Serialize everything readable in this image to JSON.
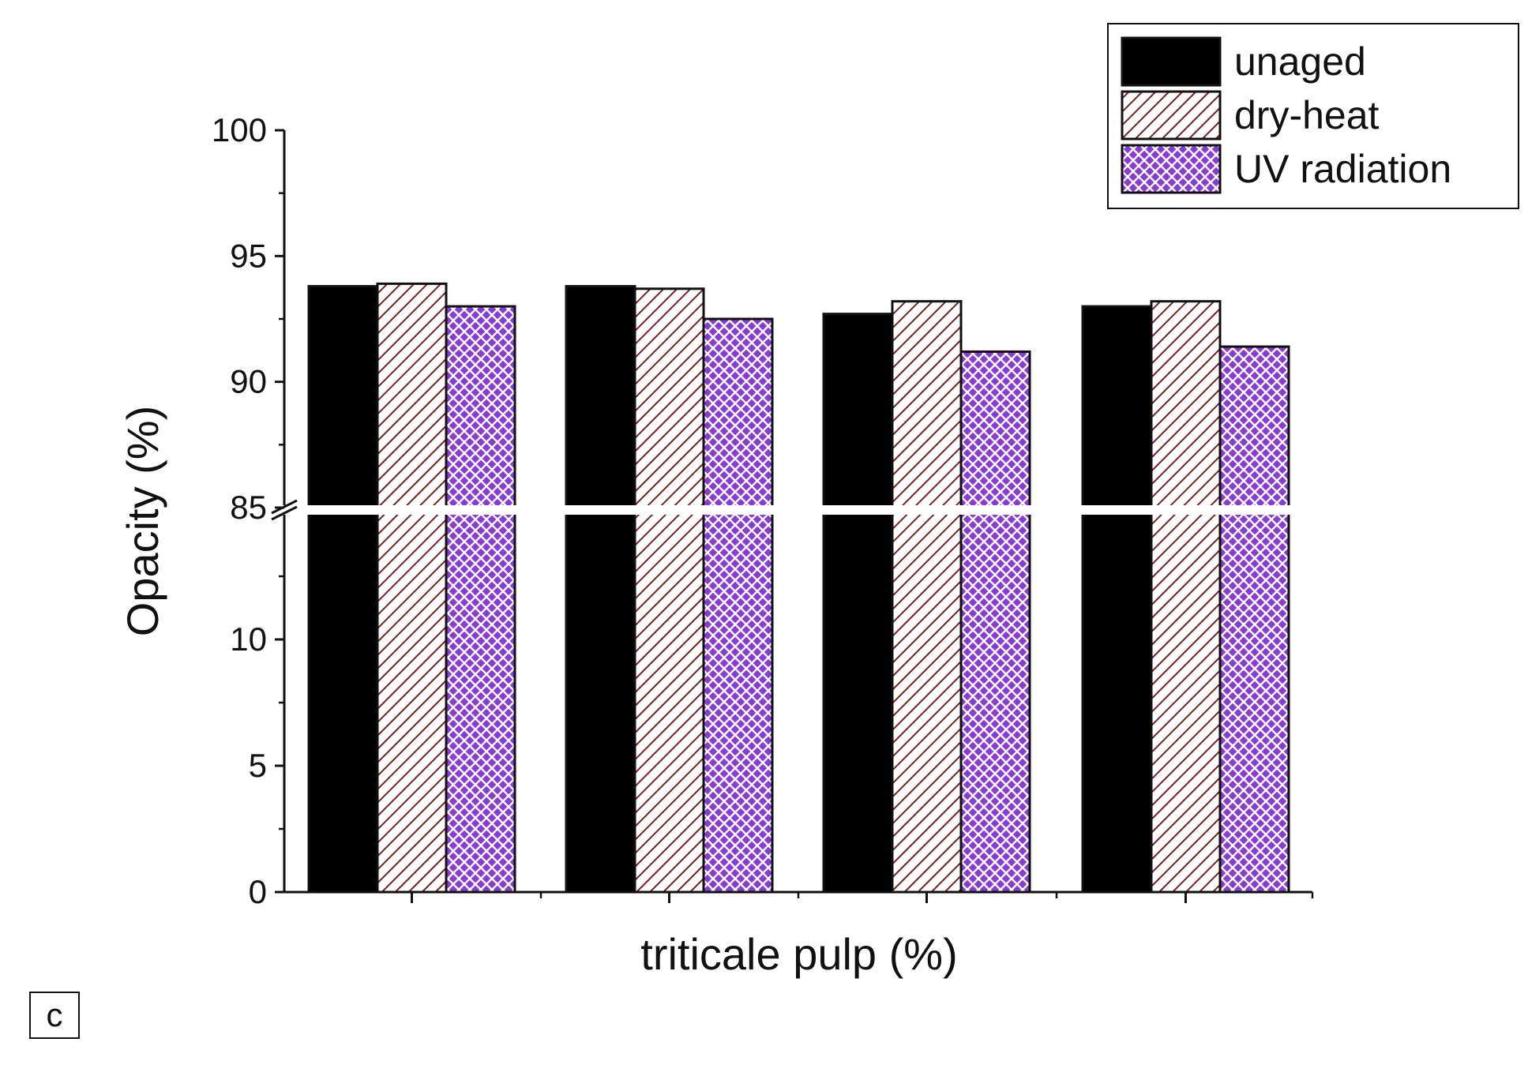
{
  "chart_data": {
    "type": "bar",
    "title": "",
    "xlabel": "triticale pulp (%)",
    "ylabel": "Opacity (%)",
    "categories": [
      "",
      "",
      "",
      ""
    ],
    "series": [
      {
        "name": "unaged",
        "values": [
          93.8,
          93.8,
          92.7,
          93.0
        ],
        "color": "#000000",
        "pattern": "solid"
      },
      {
        "name": "dry-heat",
        "values": [
          93.9,
          93.7,
          93.2,
          93.2
        ],
        "color": "#7a1f1f",
        "pattern": "diagonal-hatch"
      },
      {
        "name": "UV radiation",
        "values": [
          93.0,
          92.5,
          91.2,
          91.4
        ],
        "color": "#8a3ad8",
        "pattern": "crosshatch"
      }
    ],
    "axis_break": {
      "lower_range": [
        0,
        15
      ],
      "upper_range": [
        85,
        100
      ]
    },
    "yticks_lower": [
      "0",
      "5",
      "10"
    ],
    "yticks_upper": [
      "85",
      "90",
      "95",
      "100"
    ],
    "grid": false,
    "legend_position": "top-right",
    "panel_label": "c"
  }
}
